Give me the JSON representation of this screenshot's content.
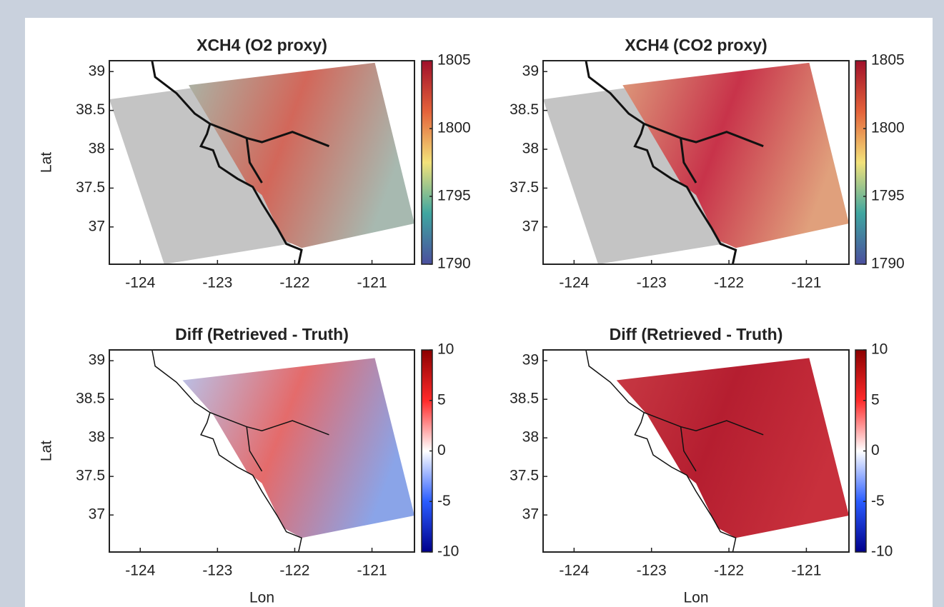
{
  "panels": [
    {
      "title": "XCH4 (O2 proxy)",
      "ylabel": "Lat",
      "xlim": [
        -124.4,
        -120.45
      ],
      "xticks": [
        -124,
        -123,
        -122,
        -121
      ],
      "ylim": [
        36.52,
        39.14
      ],
      "yticks": [
        37,
        37.5,
        38,
        38.5,
        39
      ],
      "colorbar": {
        "lim": [
          1790,
          1805
        ],
        "ticks": [
          1790,
          1795,
          1800,
          1805
        ],
        "colors": [
          "#4b4f9e",
          "#3fa6a0",
          "#f2e27a",
          "#e4623a",
          "#a0102a"
        ]
      }
    },
    {
      "title": "XCH4 (CO2 proxy)",
      "xlim": [
        -124.4,
        -120.45
      ],
      "xticks": [
        -124,
        -123,
        -122,
        -121
      ],
      "ylim": [
        36.52,
        39.14
      ],
      "yticks": [
        37,
        37.5,
        38,
        38.5,
        39
      ],
      "colorbar": {
        "lim": [
          1790,
          1805
        ],
        "ticks": [
          1790,
          1795,
          1800,
          1805
        ],
        "colors": [
          "#4b4f9e",
          "#3fa6a0",
          "#f2e27a",
          "#e4623a",
          "#a0102a"
        ]
      }
    },
    {
      "title": "Diff (Retrieved - Truth)",
      "xlabel": "Lon",
      "ylabel": "Lat",
      "xlim": [
        -124.4,
        -120.45
      ],
      "xticks": [
        -124,
        -123,
        -122,
        -121
      ],
      "ylim": [
        36.52,
        39.14
      ],
      "yticks": [
        37,
        37.5,
        38,
        38.5,
        39
      ],
      "colorbar": {
        "lim": [
          -10,
          10
        ],
        "ticks": [
          -10,
          -5,
          0,
          5,
          10
        ],
        "colors": [
          "#00008b",
          "#2a5cff",
          "#ffffff",
          "#ff2a2a",
          "#8b0000"
        ]
      }
    },
    {
      "title": "Diff (Retrieved - Truth)",
      "xlabel": "Lon",
      "xlim": [
        -124.4,
        -120.45
      ],
      "xticks": [
        -124,
        -123,
        -122,
        -121
      ],
      "ylim": [
        36.52,
        39.14
      ],
      "yticks": [
        37,
        37.5,
        38,
        38.5,
        39
      ],
      "colorbar": {
        "lim": [
          -10,
          10
        ],
        "ticks": [
          -10,
          -5,
          0,
          5,
          10
        ],
        "colors": [
          "#00008b",
          "#2a5cff",
          "#ffffff",
          "#ff2a2a",
          "#8b0000"
        ]
      }
    }
  ]
}
